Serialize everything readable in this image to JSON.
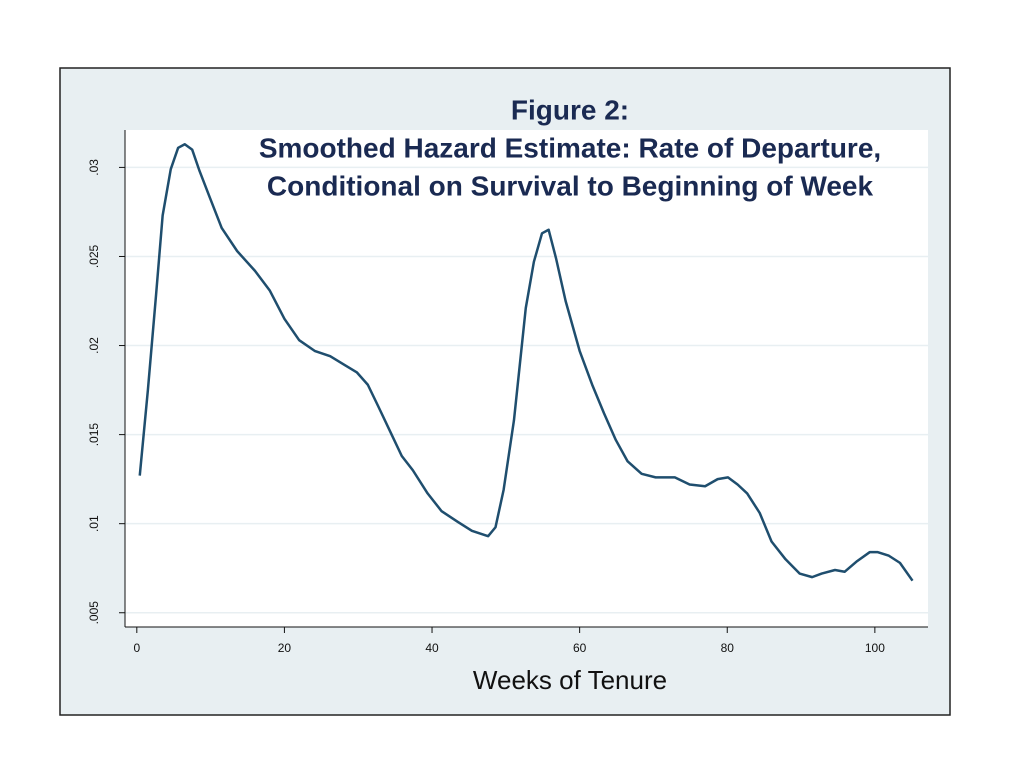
{
  "chart_data": {
    "type": "line",
    "title": [
      "Figure 2:",
      "Smoothed Hazard Estimate: Rate of Departure,",
      "Conditional on Survival to Beginning of Week"
    ],
    "xlabel": "Weeks of Tenure",
    "x": [
      0.4,
      1.5,
      2.6,
      3.5,
      4.6,
      5.6,
      6.5,
      7.5,
      8.5,
      9.9,
      11.5,
      13.6,
      16,
      18,
      20,
      22,
      24.1,
      26.2,
      28.2,
      29.8,
      31.3,
      32.7,
      34.3,
      35.9,
      37.4,
      39.4,
      41.3,
      43.5,
      45.4,
      47.6,
      48.6,
      49.7,
      51.1,
      52.7,
      53.8,
      54.9,
      55.8,
      56.8,
      58.1,
      60,
      61.7,
      63.3,
      64.9,
      66.5,
      68.4,
      70.3,
      72.9,
      74.9,
      77,
      78.7,
      80.1,
      81.4,
      82.7,
      84.4,
      86,
      87.9,
      89.8,
      91.5,
      92.8,
      94.6,
      95.9,
      97.6,
      99.3,
      100.4,
      101.9,
      103.4,
      105.1
    ],
    "series": [
      {
        "name": "hazard",
        "color": "#1f4e6e",
        "values": [
          0.0127,
          0.0175,
          0.0228,
          0.0273,
          0.0299,
          0.0311,
          0.0313,
          0.031,
          0.0298,
          0.0283,
          0.0266,
          0.0253,
          0.0242,
          0.0231,
          0.0215,
          0.0203,
          0.0197,
          0.0194,
          0.0189,
          0.0185,
          0.0178,
          0.0166,
          0.0152,
          0.0138,
          0.013,
          0.0117,
          0.0107,
          0.0101,
          0.0096,
          0.0093,
          0.0098,
          0.0119,
          0.0158,
          0.0221,
          0.0247,
          0.0263,
          0.0265,
          0.0249,
          0.0225,
          0.0197,
          0.0178,
          0.0162,
          0.0147,
          0.0135,
          0.0128,
          0.0126,
          0.0126,
          0.0122,
          0.0121,
          0.0125,
          0.0126,
          0.0122,
          0.0117,
          0.0106,
          0.009,
          0.008,
          0.0072,
          0.007,
          0.0072,
          0.0074,
          0.0073,
          0.0079,
          0.0084,
          0.0084,
          0.0082,
          0.0078,
          0.0068
        ]
      }
    ],
    "xlim": [
      -1.6,
      107.2
    ],
    "xticks": [
      0,
      20,
      40,
      60,
      80,
      100
    ],
    "ylim": [
      0.0042,
      0.0321
    ],
    "yticks": [
      {
        "value": 0.005,
        "label": ".005"
      },
      {
        "value": 0.01,
        "label": ".01"
      },
      {
        "value": 0.015,
        "label": ".015"
      },
      {
        "value": 0.02,
        "label": ".02"
      },
      {
        "value": 0.025,
        "label": ".025"
      },
      {
        "value": 0.03,
        "label": ".03"
      }
    ],
    "grid": true
  }
}
